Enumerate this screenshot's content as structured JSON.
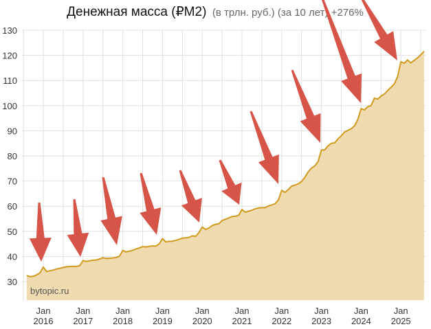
{
  "chart_data": {
    "type": "area",
    "title": "Денежная масса (₽M2)",
    "subtitle": "(в трлн. руб.) (за 10 лет) +276%",
    "watermark": "bytopic.ru",
    "xlabel": "",
    "ylabel": "",
    "ylim": [
      23,
      133
    ],
    "yticks": [
      "30",
      "40",
      "50",
      "60",
      "70",
      "80",
      "90",
      "100",
      "110",
      "120",
      "130"
    ],
    "xticks": [
      {
        "top": "Jan",
        "bottom": "2016"
      },
      {
        "top": "Jan",
        "bottom": "2017"
      },
      {
        "top": "Jan",
        "bottom": "2018"
      },
      {
        "top": "Jan",
        "bottom": "2019"
      },
      {
        "top": "Jan",
        "bottom": "2020"
      },
      {
        "top": "Jan",
        "bottom": "2021"
      },
      {
        "top": "Jan",
        "bottom": "2022"
      },
      {
        "top": "Jan",
        "bottom": "2023"
      },
      {
        "top": "Jan",
        "bottom": "2024"
      },
      {
        "top": "Jan",
        "bottom": "2025"
      }
    ],
    "grid": true,
    "start_month": "2015-08",
    "values": [
      32.4,
      32.0,
      32.1,
      32.7,
      33.5,
      35.8,
      34.0,
      34.3,
      34.6,
      35.0,
      35.3,
      35.6,
      35.9,
      36.0,
      36.1,
      36.0,
      36.3,
      38.4,
      38.0,
      38.3,
      38.5,
      38.6,
      39.0,
      39.5,
      39.2,
      39.3,
      39.4,
      39.6,
      40.1,
      42.4,
      41.8,
      42.1,
      42.5,
      43.0,
      43.4,
      43.9,
      43.8,
      44.0,
      44.2,
      44.1,
      45.0,
      47.1,
      45.8,
      46.0,
      46.1,
      46.4,
      46.8,
      47.3,
      47.4,
      47.6,
      48.2,
      48.0,
      49.5,
      51.7,
      50.8,
      51.3,
      52.3,
      52.8,
      53.0,
      54.3,
      54.8,
      55.3,
      55.9,
      56.0,
      56.4,
      58.7,
      57.6,
      58.0,
      58.4,
      59.0,
      59.3,
      59.4,
      59.4,
      60.1,
      60.5,
      61.0,
      62.5,
      66.3,
      65.5,
      66.6,
      68.0,
      68.4,
      68.9,
      69.8,
      71.5,
      73.6,
      75.2,
      76.0,
      77.8,
      82.4,
      82.4,
      84.0,
      85.0,
      85.2,
      86.8,
      88.0,
      89.5,
      90.2,
      90.8,
      92.0,
      94.5,
      98.8,
      98.3,
      99.6,
      100.0,
      103.0,
      102.6,
      103.8,
      104.6,
      106.0,
      107.3,
      108.6,
      111.5,
      117.5,
      116.8,
      118.2,
      117.0,
      118.0,
      119.0,
      120.2,
      121.6
    ],
    "annotations": "red arrows pointing to each January spike",
    "colors": {
      "fill": "#f0dab0",
      "line": "#d09a1e",
      "arrow": "#d65448",
      "grid": "#e0e0e0"
    }
  }
}
